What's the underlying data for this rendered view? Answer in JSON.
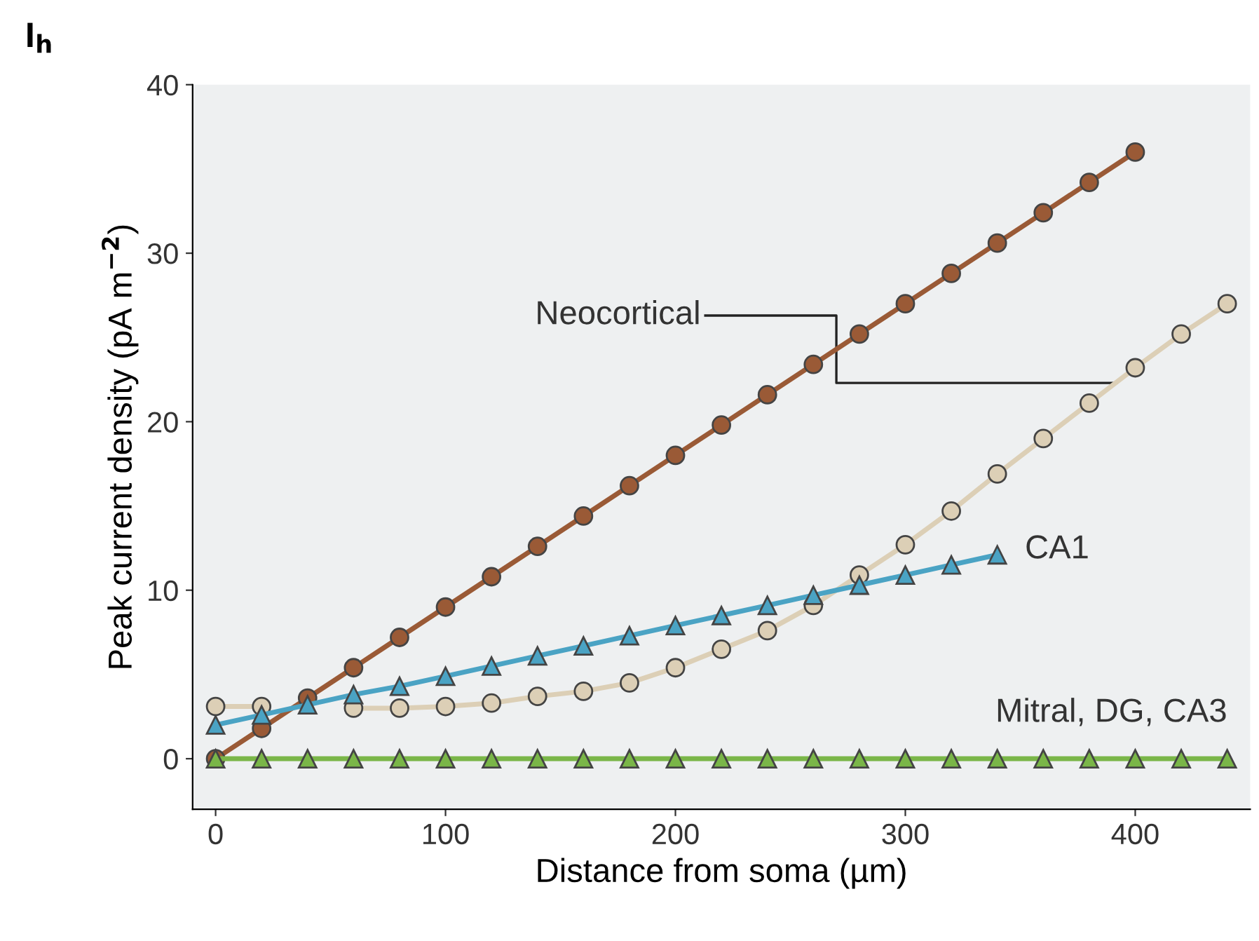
{
  "chart_data": {
    "type": "line",
    "title": "I$_{h}$",
    "xlabel": "Distance from soma (µm)",
    "ylabel": "Peak current density (pA m$^{−2}$)",
    "xlim": [
      -10,
      450
    ],
    "ylim": [
      -3,
      40
    ],
    "xticks": [
      0,
      100,
      200,
      300,
      400
    ],
    "yticks": [
      0,
      10,
      20,
      30,
      40
    ],
    "grid": false,
    "legend": false,
    "series": [
      {
        "name": "Neocortical",
        "color": "#9a5a36",
        "marker": "circle",
        "x": [
          0,
          20,
          40,
          60,
          80,
          100,
          120,
          140,
          160,
          180,
          200,
          220,
          240,
          260,
          280,
          300,
          320,
          340,
          360,
          380,
          400
        ],
        "values": [
          0,
          1.8,
          3.6,
          5.4,
          7.2,
          9.0,
          10.8,
          12.6,
          14.4,
          16.2,
          18.0,
          19.8,
          21.6,
          23.4,
          25.2,
          27.0,
          28.8,
          30.6,
          32.4,
          34.2,
          36.0
        ]
      },
      {
        "color": "#dccfb6",
        "marker": "circle",
        "x": [
          0,
          20,
          40,
          60,
          80,
          100,
          120,
          140,
          160,
          180,
          200,
          220,
          240,
          260,
          280,
          300,
          320,
          340,
          360,
          380,
          400,
          420,
          440
        ],
        "values": [
          3.1,
          3.1,
          null,
          3.0,
          3.0,
          3.1,
          3.3,
          3.7,
          4.0,
          4.5,
          5.4,
          6.5,
          7.6,
          9.1,
          10.9,
          12.7,
          14.7,
          16.9,
          19.0,
          21.1,
          23.2,
          25.2,
          27.0
        ]
      },
      {
        "name": "CA1",
        "color": "#4aa3c4",
        "marker": "triangle",
        "x": [
          0,
          20,
          40,
          60,
          80,
          100,
          120,
          140,
          160,
          180,
          200,
          220,
          240,
          260,
          280,
          300,
          320,
          340
        ],
        "values": [
          2.0,
          2.6,
          3.2,
          3.8,
          4.3,
          4.9,
          5.5,
          6.1,
          6.7,
          7.3,
          7.9,
          8.5,
          9.1,
          9.7,
          10.3,
          10.9,
          11.5,
          12.1
        ]
      },
      {
        "name": "Mitral, DG, CA3",
        "color": "#7ab648",
        "marker": "triangle",
        "x": [
          0,
          20,
          40,
          60,
          80,
          100,
          120,
          140,
          160,
          180,
          200,
          220,
          240,
          260,
          280,
          300,
          320,
          340,
          360,
          380,
          400,
          420,
          440
        ],
        "values": [
          0,
          0,
          0,
          0,
          0,
          0,
          0,
          0,
          0,
          0,
          0,
          0,
          0,
          0,
          0,
          0,
          0,
          0,
          0,
          0,
          0,
          0,
          0
        ]
      }
    ]
  }
}
